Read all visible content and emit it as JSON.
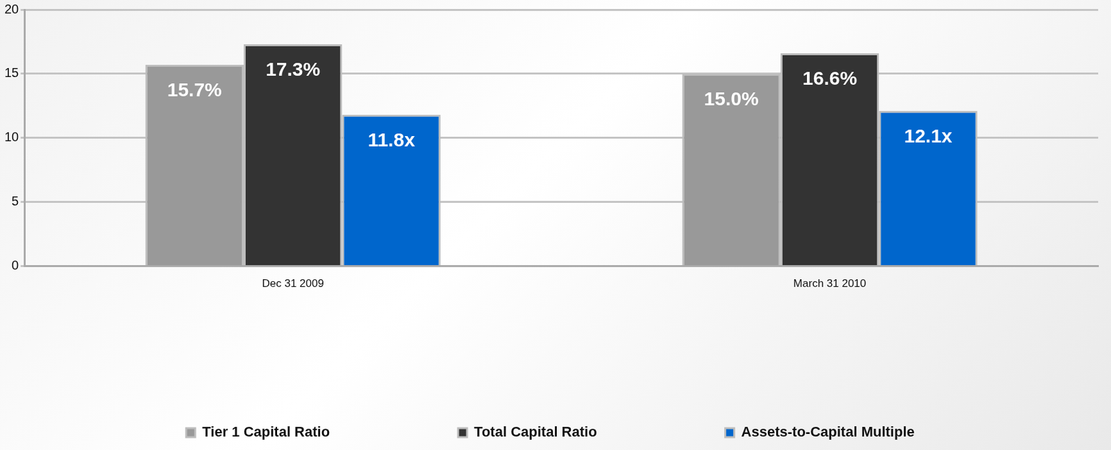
{
  "chart_data": {
    "type": "bar",
    "categories": [
      "Dec 31 2009",
      "March 31 2010"
    ],
    "series": [
      {
        "name": "Tier 1 Capital Ratio",
        "color": "#999999",
        "values": [
          15.7,
          15.0
        ],
        "value_labels": [
          "15.7%",
          "15.0%"
        ]
      },
      {
        "name": "Total Capital Ratio",
        "color": "#333333",
        "values": [
          17.3,
          16.6
        ],
        "value_labels": [
          "17.3%",
          "16.6%"
        ]
      },
      {
        "name": "Assets-to-Capital Multiple",
        "color": "#0066cc",
        "values": [
          11.8,
          12.1
        ],
        "value_labels": [
          "11.8x",
          "12.1x"
        ]
      }
    ],
    "ylim": [
      0,
      20
    ],
    "yticks": [
      0,
      5,
      10,
      15,
      20
    ],
    "grid": true,
    "legend": "bottom",
    "data_labels": true
  }
}
